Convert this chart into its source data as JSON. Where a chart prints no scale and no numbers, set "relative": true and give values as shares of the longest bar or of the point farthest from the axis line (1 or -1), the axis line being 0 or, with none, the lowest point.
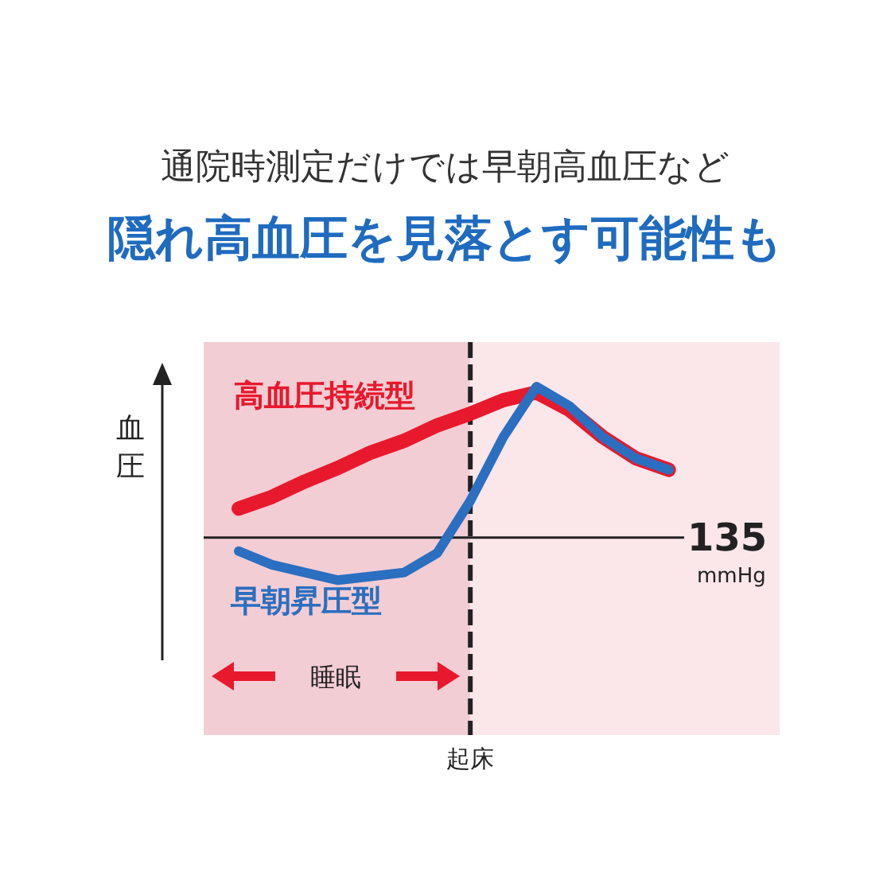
{
  "chart_data": {
    "type": "line",
    "title": "通院時測定だけでは早朝高血圧など",
    "subtitle": "隠れ高血圧を見落とす可能性も",
    "ylabel": "血圧",
    "relative": true,
    "categories": [
      null,
      null,
      null,
      null,
      null,
      null,
      null,
      null,
      null,
      null,
      null,
      null,
      null,
      null
    ],
    "series": [
      {
        "name": "高血圧持続型",
        "color": "#e8192c",
        "values": [
          0.37,
          0.43,
          0.51,
          0.58,
          0.66,
          0.72,
          0.8,
          0.86,
          0.93,
          0.97,
          0.88,
          0.74,
          0.63,
          0.57
        ]
      },
      {
        "name": "早朝昇圧型",
        "color": "#2a6fc0",
        "values": [
          0.15,
          0.08,
          0.04,
          0,
          0.02,
          0.04,
          0.14,
          0.41,
          0.74,
          1,
          0.9,
          0.74,
          0.63,
          0.57
        ]
      }
    ],
    "ref_lines": [
      {
        "axis": "y",
        "value": 0.22,
        "label": "135 mmHg",
        "color": "#222222",
        "line_style": "solid"
      }
    ],
    "annotations": [
      "睡眠",
      "起床"
    ]
  }
}
